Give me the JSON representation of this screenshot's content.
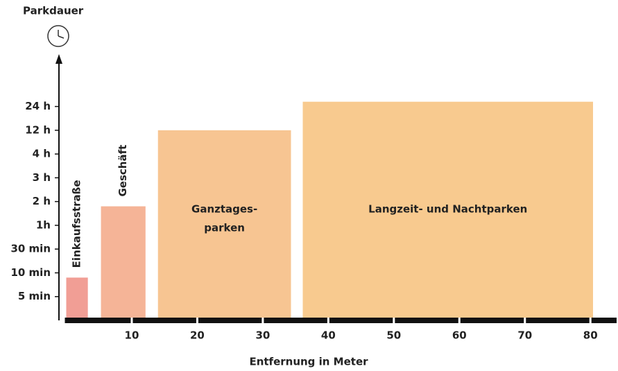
{
  "chart_data": {
    "type": "bar",
    "ylabel": "Parkdauer",
    "xlabel": "Entfernung in Meter",
    "ylim": [
      0,
      9.6
    ],
    "yticks": [
      {
        "value": 1,
        "label": "5 min"
      },
      {
        "value": 2,
        "label": "10 min"
      },
      {
        "value": 3,
        "label": "30 min"
      },
      {
        "value": 4,
        "label": "1h"
      },
      {
        "value": 5,
        "label": "2 h"
      },
      {
        "value": 6,
        "label": "3 h"
      },
      {
        "value": 7,
        "label": "4 h"
      },
      {
        "value": 8,
        "label": "12 h"
      },
      {
        "value": 9,
        "label": "24 h"
      }
    ],
    "xlim": [
      0,
      84
    ],
    "xticks": [
      10,
      20,
      30,
      40,
      50,
      60,
      70,
      80
    ],
    "series": [
      {
        "name": [
          "Einkaufsstraße"
        ],
        "color": "#f19e95",
        "x": [
          0,
          3.3
        ],
        "values": 1.8,
        "label_rotated": true
      },
      {
        "name": [
          "Geschäft"
        ],
        "color": "#f5b497",
        "x": [
          5.3,
          12.1
        ],
        "values": 4.8,
        "label_rotated": true
      },
      {
        "name": [
          "Ganztages-",
          "parken"
        ],
        "color": "#f7c592",
        "x": [
          14,
          34.3
        ],
        "values": 8.0,
        "label_rotated": false
      },
      {
        "name": [
          "Langzeit- und Nachtparken"
        ],
        "color": "#f8ca8f",
        "x": [
          36.1,
          80.4
        ],
        "values": 9.2,
        "label_rotated": false
      }
    ]
  }
}
